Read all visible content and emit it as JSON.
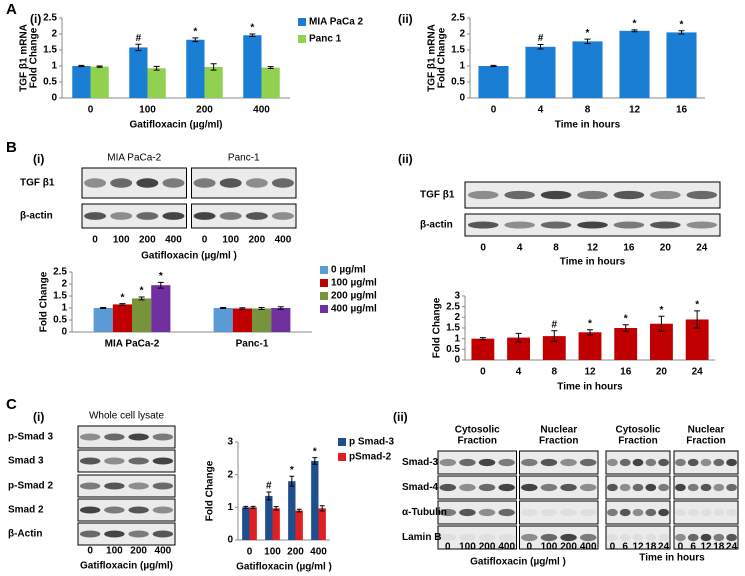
{
  "panel_labels": [
    "A",
    "(i)",
    "(ii)",
    "B",
    "(i)",
    "(ii)",
    "C",
    "(i)",
    "(ii)"
  ],
  "chart_data": [
    {
      "type": "bar",
      "y_label": [
        "TGF β1 mRNA",
        "Fold Change"
      ],
      "x_label": "Gatifloxacin (µg/ml)",
      "categories": [
        "0",
        "100",
        "200",
        "400"
      ],
      "series": [
        {
          "name": "MIA PaCa 2",
          "color": "#1a7fd4",
          "values": [
            1,
            1.58,
            1.82,
            1.96
          ],
          "errors": [
            0.02,
            0.1,
            0.06,
            0.04
          ],
          "marks": [
            null,
            "#",
            "*",
            "*"
          ]
        },
        {
          "name": "Panc 1",
          "color": "#92d050",
          "values": [
            0.98,
            0.93,
            0.97,
            0.95
          ],
          "errors": [
            0.02,
            0.06,
            0.1,
            0.03
          ]
        }
      ],
      "ylim": [
        0,
        2.5
      ],
      "yticks": [
        0,
        0.5,
        1,
        1.5,
        2,
        2.5
      ],
      "legend": "right"
    },
    {
      "type": "bar",
      "y_label": [
        "TGF β1 mRNA",
        "Fold Change"
      ],
      "x_label": "Time in hours",
      "categories": [
        "0",
        "4",
        "8",
        "12",
        "16"
      ],
      "color": "#1a7fd4",
      "values": [
        1,
        1.6,
        1.77,
        2.1,
        2.05
      ],
      "errors": [
        0.02,
        0.07,
        0.07,
        0.03,
        0.05
      ],
      "marks": [
        null,
        "#",
        "*",
        "*",
        "*"
      ],
      "ylim": [
        0,
        2.5
      ],
      "yticks": [
        0,
        0.5,
        1,
        1.5,
        2,
        2.5
      ]
    },
    {
      "type": "bar",
      "y_label": [
        "Fold Change"
      ],
      "categories": [
        "MIA PaCa-2",
        "Panc-1"
      ],
      "series": [
        {
          "name": "0 µg/ml",
          "color": "#5b9bd5",
          "values": [
            1,
            1
          ],
          "errors": [
            0.02,
            0.02
          ]
        },
        {
          "name": "100 µg/ml",
          "color": "#c00000",
          "values": [
            1.15,
            0.98
          ],
          "errors": [
            0.03,
            0.03
          ],
          "marks": [
            "*",
            null
          ]
        },
        {
          "name": "200 µg/ml",
          "color": "#77933c",
          "values": [
            1.4,
            0.98
          ],
          "errors": [
            0.06,
            0.04
          ],
          "marks": [
            "*",
            null
          ]
        },
        {
          "name": "400 µg/ml",
          "color": "#7030a0",
          "values": [
            1.95,
            1
          ],
          "errors": [
            0.12,
            0.05
          ],
          "marks": [
            "*",
            null
          ]
        }
      ],
      "ylim": [
        0,
        2.5
      ],
      "yticks": [
        0,
        0.5,
        1,
        1.5,
        2,
        2.5
      ],
      "legend": "right"
    },
    {
      "type": "bar",
      "y_label": [
        "Fold Change"
      ],
      "x_label": "Time in hours",
      "categories": [
        "0",
        "4",
        "8",
        "12",
        "16",
        "20",
        "24"
      ],
      "color": "#c00000",
      "values": [
        1,
        1.05,
        1.12,
        1.3,
        1.5,
        1.7,
        1.9
      ],
      "errors": [
        0.05,
        0.2,
        0.25,
        0.12,
        0.15,
        0.35,
        0.4
      ],
      "marks": [
        null,
        null,
        "#",
        "*",
        "*",
        "*",
        "*"
      ],
      "ylim": [
        0,
        3
      ],
      "yticks": [
        0,
        0.5,
        1,
        1.5,
        2,
        2.5,
        3
      ]
    },
    {
      "type": "bar",
      "y_label": [
        "Fold Change"
      ],
      "x_label": "Gatifloxacin (µg/ml )",
      "categories": [
        "0",
        "100",
        "200",
        "400"
      ],
      "series": [
        {
          "name": "p Smad-3",
          "color": "#1f4e8c",
          "values": [
            1,
            1.35,
            1.8,
            2.42
          ],
          "errors": [
            0.03,
            0.12,
            0.15,
            0.1
          ],
          "marks": [
            null,
            "#",
            "*",
            "*"
          ]
        },
        {
          "name": "pSmad-2",
          "color": "#e02020",
          "values": [
            1,
            0.97,
            0.9,
            0.97
          ],
          "errors": [
            0.03,
            0.05,
            0.04,
            0.08
          ]
        }
      ],
      "ylim": [
        0,
        3
      ],
      "yticks": [
        0,
        1,
        2,
        3
      ],
      "legend": "right"
    }
  ],
  "blots": [
    {
      "groups": [
        "MIA PaCa-2",
        "Panc-1"
      ],
      "rows": [
        "TGF β1",
        "β-actin"
      ],
      "lanes": [
        "0",
        "100",
        "200",
        "400",
        "0",
        "100",
        "200",
        "400"
      ],
      "x_label": "Gatifloxacin (µg/ml )"
    },
    {
      "rows": [
        "TGF β1",
        "β-actin"
      ],
      "lanes": [
        "0",
        "4",
        "8",
        "12",
        "16",
        "20",
        "24"
      ],
      "x_label": "Time in hours"
    },
    {
      "title": "Whole cell lysate",
      "rows": [
        "p-Smad 3",
        "Smad 3",
        "p-Smad 2",
        "Smad 2",
        "β-Actin"
      ],
      "lanes": [
        "0",
        "100",
        "200",
        "400"
      ],
      "x_label": "Gatifloxacin (µg/ml)"
    },
    {
      "groups": [
        [
          "Cytosolic",
          "Fraction"
        ],
        [
          "Nuclear",
          "Fraction"
        ]
      ],
      "rows": [
        "Smad-3",
        "Smad-4",
        "α-Tubulin",
        "Lamin B"
      ],
      "lanes": [
        "0",
        "100",
        "200",
        "400",
        "0",
        "100",
        "200",
        "400"
      ],
      "x_label": "Gatifloxacin (µg/ml )"
    },
    {
      "groups": [
        [
          "Cytosolic",
          "Fraction"
        ],
        [
          "Nuclear",
          "Fraction"
        ]
      ],
      "lanes": [
        "0",
        "6",
        "12",
        "18",
        "24",
        "0",
        "6",
        "12",
        "18",
        "24"
      ],
      "x_label": "Time in hours"
    }
  ]
}
